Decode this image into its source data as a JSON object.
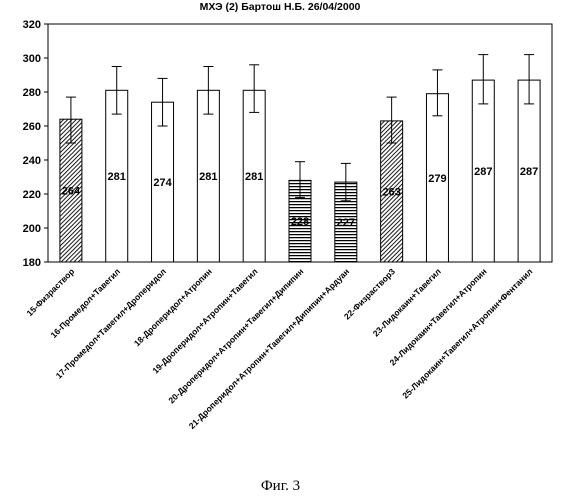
{
  "chart_data": {
    "type": "bar",
    "title": "МХЭ   (2) Бартош Н.Б.   26/04/2000",
    "xlabel": "",
    "ylabel": "",
    "ylim": [
      180,
      320
    ],
    "yticks": [
      180,
      200,
      220,
      240,
      260,
      280,
      300,
      320
    ],
    "grid": "none",
    "legend": "none",
    "error_bars": true,
    "categories": [
      "15-Физраствор",
      "16-Промедол+Тавегил",
      "17-Промедол+Тавегил+Дроперидол",
      "18-Дроперидол+Атропин",
      "19-Дроперидол+Атропин+Тавегил",
      "20-Дроперидол+Атропин+Тавегил+Дипипин",
      "21-Дроперидол+Атропин+Тавегил+Дипипин+Ардуан",
      "22-Физраствор3",
      "23-Лидокаин+Тавегил",
      "24-Лидокаин+Тавегил+Атропин",
      "25-Лидокаин+Тавегил+Атропин+Фентанил"
    ],
    "values": [
      264,
      281,
      274,
      281,
      281,
      228,
      227,
      263,
      279,
      287,
      287
    ],
    "value_labels": [
      "264",
      "281",
      "274",
      "281",
      "281",
      "228",
      "227",
      "263",
      "279",
      "287",
      "287"
    ],
    "error_low": [
      250,
      267,
      260,
      267,
      268,
      218,
      216,
      250,
      266,
      273,
      273
    ],
    "error_high": [
      277,
      295,
      288,
      295,
      296,
      239,
      238,
      277,
      293,
      302,
      302
    ],
    "fill_patterns": [
      "diagonal",
      "white",
      "white",
      "white",
      "white",
      "horizontal",
      "horizontal",
      "diagonal",
      "white",
      "white",
      "white"
    ]
  },
  "caption": "Фиг. 3"
}
